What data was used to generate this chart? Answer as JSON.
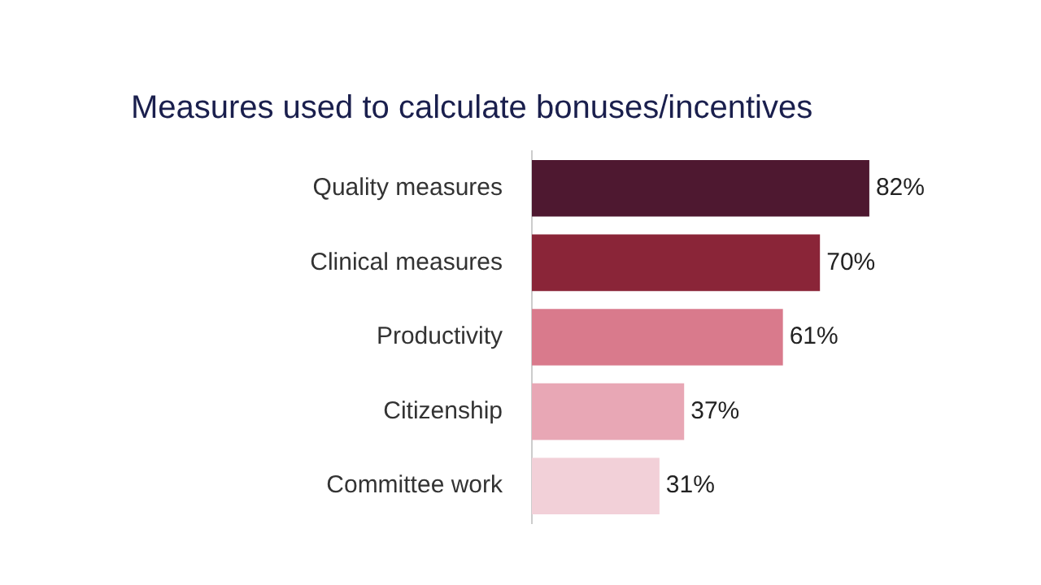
{
  "chart_data": {
    "type": "bar",
    "orientation": "horizontal",
    "title": "Measures used to calculate bonuses/incentives",
    "categories": [
      "Quality measures",
      "Clinical measures",
      "Productivity",
      "Citizenship",
      "Committee work"
    ],
    "values": [
      82,
      70,
      61,
      37,
      31
    ],
    "colors": [
      "#4e1830",
      "#8a2538",
      "#d97a8c",
      "#e8a7b5",
      "#f2d0d8"
    ],
    "value_labels": [
      "82%",
      "70%",
      "61%",
      "37%",
      "31%"
    ]
  }
}
